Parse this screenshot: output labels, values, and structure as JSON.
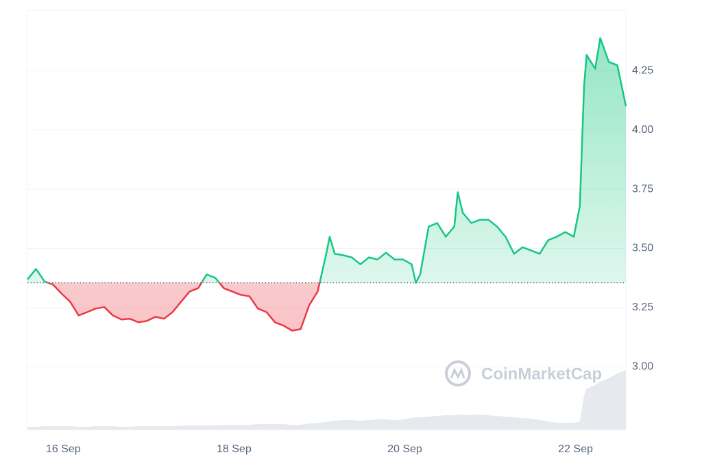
{
  "chart_data": {
    "type": "line",
    "watermark": "CoinMarketCap",
    "x": [
      15.58,
      15.68,
      15.78,
      15.88,
      15.98,
      16.08,
      16.18,
      16.28,
      16.38,
      16.48,
      16.58,
      16.68,
      16.78,
      16.88,
      16.98,
      17.08,
      17.18,
      17.28,
      17.38,
      17.48,
      17.58,
      17.68,
      17.78,
      17.88,
      17.98,
      18.08,
      18.18,
      18.28,
      18.38,
      18.48,
      18.58,
      18.68,
      18.78,
      18.88,
      18.98,
      19.08,
      19.12,
      19.18,
      19.28,
      19.38,
      19.48,
      19.58,
      19.68,
      19.78,
      19.88,
      19.98,
      20.08,
      20.13,
      20.18,
      20.28,
      20.38,
      20.48,
      20.58,
      20.62,
      20.68,
      20.78,
      20.88,
      20.98,
      21.08,
      21.18,
      21.28,
      21.38,
      21.48,
      21.58,
      21.68,
      21.78,
      21.88,
      21.98,
      22.05,
      22.1,
      22.13,
      22.23,
      22.29,
      22.39,
      22.49,
      22.59
    ],
    "xlim": [
      15.58,
      22.59
    ],
    "xticks": [
      {
        "value": 16,
        "label": "16 Sep"
      },
      {
        "value": 18,
        "label": "18 Sep"
      },
      {
        "value": 20,
        "label": "20 Sep"
      },
      {
        "value": 22,
        "label": "22 Sep"
      }
    ],
    "ylim": [
      2.735,
      4.505
    ],
    "yticks": [
      {
        "value": 3,
        "label": "3.00"
      },
      3.25,
      {
        "value": 3.5,
        "label": "3.50"
      },
      3.75,
      {
        "value": 4,
        "label": "4.00"
      },
      4.25
    ],
    "baseline": 3.355,
    "up_color": "#16c784",
    "down_color": "#ea3943",
    "grid": true,
    "series": [
      {
        "name": "Price",
        "values": [
          3.369,
          3.413,
          3.361,
          3.347,
          3.309,
          3.275,
          3.217,
          3.231,
          3.246,
          3.252,
          3.217,
          3.2,
          3.203,
          3.188,
          3.194,
          3.211,
          3.203,
          3.231,
          3.275,
          3.318,
          3.332,
          3.39,
          3.376,
          3.332,
          3.318,
          3.304,
          3.298,
          3.246,
          3.231,
          3.188,
          3.174,
          3.153,
          3.159,
          3.26,
          3.318,
          3.477,
          3.549,
          3.477,
          3.471,
          3.462,
          3.433,
          3.462,
          3.453,
          3.482,
          3.453,
          3.453,
          3.433,
          3.355,
          3.39,
          3.592,
          3.607,
          3.549,
          3.592,
          3.737,
          3.65,
          3.607,
          3.621,
          3.621,
          3.592,
          3.549,
          3.477,
          3.505,
          3.491,
          3.477,
          3.535,
          3.549,
          3.569,
          3.549,
          3.679,
          4.186,
          4.316,
          4.258,
          4.388,
          4.287,
          4.273,
          4.1
        ]
      },
      {
        "name": "Volume",
        "axis": "y2",
        "color": "#e6e9ee",
        "values": [
          4,
          4,
          5,
          5,
          5,
          5,
          4,
          4,
          5,
          5,
          5,
          4,
          4,
          5,
          5,
          5,
          5,
          5,
          6,
          6,
          6,
          6,
          6,
          7,
          7,
          7,
          7,
          8,
          8,
          8,
          8,
          7,
          7,
          9,
          10,
          11,
          12,
          13,
          14,
          14,
          13,
          14,
          15,
          15,
          14,
          15,
          17,
          18,
          18,
          19,
          20,
          21,
          21,
          22,
          22,
          21,
          22,
          21,
          20,
          19,
          18,
          17,
          16,
          14,
          12,
          10,
          10,
          10,
          12,
          50,
          60,
          65,
          70,
          75,
          82,
          87
        ]
      }
    ],
    "y2lim": [
      0,
      100
    ]
  }
}
